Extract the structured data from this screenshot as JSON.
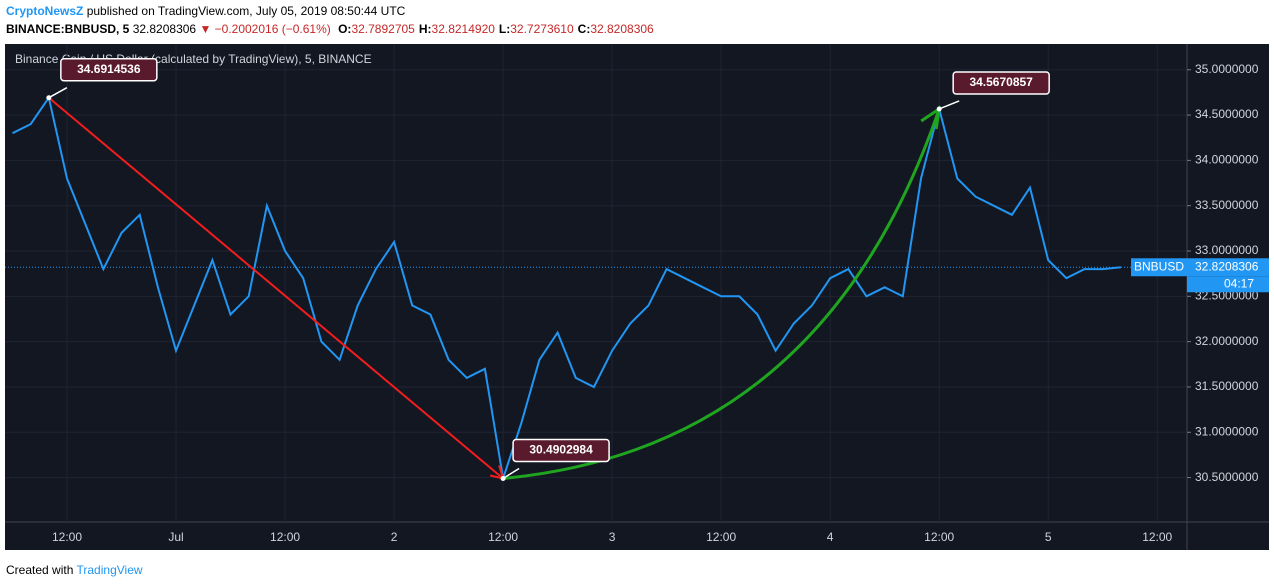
{
  "header": {
    "publisher": "CryptoNewsZ",
    "published": "published on TradingView.com, July 05, 2019 08:50:44 UTC",
    "symbol": "BINANCE:BNBUSD, 5",
    "price": "32.8208306",
    "change": "▼ −0.2002016 (−0.61%)",
    "ohlc": [
      {
        "key": "O:",
        "value": "32.7892705"
      },
      {
        "key": "H:",
        "value": "32.8214920"
      },
      {
        "key": "L:",
        "value": "32.7273610"
      },
      {
        "key": "C:",
        "value": "32.8208306"
      }
    ]
  },
  "chart_data": {
    "type": "line",
    "title": "Binance Coin / US Dollar (calculated by TradingView), 5, BINANCE",
    "categories": [
      null,
      null,
      null,
      "12:00",
      null,
      null,
      null,
      null,
      null,
      "Jul",
      null,
      null,
      null,
      null,
      null,
      "12:00",
      null,
      null,
      null,
      null,
      null,
      "2",
      null,
      null,
      null,
      null,
      null,
      "12:00",
      null,
      null,
      null,
      null,
      null,
      "3",
      null,
      null,
      null,
      null,
      null,
      "12:00",
      null,
      null,
      null,
      null,
      null,
      "4",
      null,
      null,
      null,
      null,
      null,
      "12:00",
      null,
      null,
      null,
      null,
      null,
      "5",
      null,
      null,
      null,
      null,
      null,
      "12:00"
    ],
    "series": [
      {
        "name": "BNBUSD",
        "color": "#2196f3",
        "values": [
          34.3,
          34.4,
          34.6914536,
          33.8,
          33.3,
          32.8,
          33.2,
          33.4,
          32.6,
          31.9,
          32.4,
          32.9,
          32.3,
          32.5,
          33.5,
          33.0,
          32.7,
          32.0,
          31.8,
          32.4,
          32.8,
          33.1,
          32.4,
          32.3,
          31.8,
          31.6,
          31.7,
          30.4902984,
          31.1,
          31.8,
          32.1,
          31.6,
          31.5,
          31.9,
          32.2,
          32.4,
          32.8,
          32.7,
          32.6,
          32.5,
          32.5,
          32.3,
          31.9,
          32.2,
          32.4,
          32.7,
          32.8,
          32.5,
          32.6,
          32.5,
          33.8,
          34.5670857,
          33.8,
          33.6,
          33.5,
          33.4,
          33.7,
          32.9,
          32.7,
          32.8,
          32.8,
          32.8208306,
          null,
          null
        ]
      }
    ],
    "annotations": [
      34.6914536,
      30.4902984,
      34.5670857
    ],
    "countdown": "04:17",
    "ylim": [
      30.01,
      35.24
    ],
    "yticks": [
      {
        "value": 30.5,
        "label": "30.5000000"
      },
      {
        "value": 31,
        "label": "31.0000000"
      },
      {
        "value": 31.5,
        "label": "31.5000000"
      },
      {
        "value": 32,
        "label": "32.0000000"
      },
      {
        "value": 32.5,
        "label": "32.5000000"
      },
      {
        "value": 33,
        "label": "33.0000000"
      },
      {
        "value": 33.5,
        "label": "33.5000000"
      },
      {
        "value": 34,
        "label": "34.0000000"
      },
      {
        "value": 34.5,
        "label": "34.5000000"
      },
      {
        "value": 35,
        "label": "35.0000000"
      }
    ],
    "grid": true
  },
  "footer": {
    "created": "Created with",
    "brand": "TradingView"
  }
}
